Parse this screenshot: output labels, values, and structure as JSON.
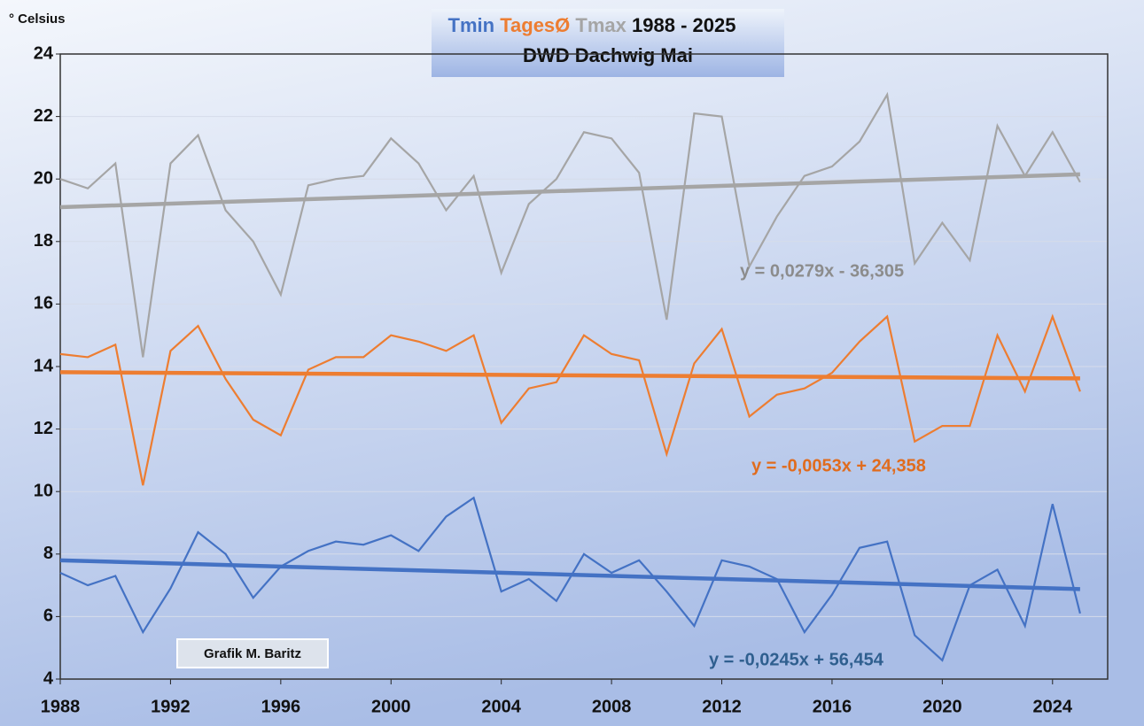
{
  "chart_data": {
    "type": "line",
    "title": "1988 - 2025",
    "subtitle": "DWD Dachwig Mai",
    "ylabel": "° Celsius",
    "credit": "Grafik M. Baritz",
    "x": [
      1988,
      1989,
      1990,
      1991,
      1992,
      1993,
      1994,
      1995,
      1996,
      1997,
      1998,
      1999,
      2000,
      2001,
      2002,
      2003,
      2004,
      2005,
      2006,
      2007,
      2008,
      2009,
      2010,
      2011,
      2012,
      2013,
      2014,
      2015,
      2016,
      2017,
      2018,
      2019,
      2020,
      2021,
      2022,
      2023,
      2024,
      2025
    ],
    "series": [
      {
        "name": "Tmin",
        "color": "#4472c4",
        "values": [
          7.4,
          7.0,
          7.3,
          5.5,
          6.9,
          8.7,
          8.0,
          6.6,
          7.6,
          8.1,
          8.4,
          8.3,
          8.6,
          8.1,
          9.2,
          9.8,
          6.8,
          7.2,
          6.5,
          8.0,
          7.4,
          7.8,
          6.8,
          5.7,
          7.8,
          7.6,
          7.2,
          5.5,
          6.7,
          8.2,
          8.4,
          5.4,
          4.6,
          7.0,
          7.5,
          5.7,
          9.6,
          6.1
        ]
      },
      {
        "name": "TagesØ",
        "color": "#ed7d31",
        "values": [
          14.4,
          14.3,
          14.7,
          10.2,
          14.5,
          15.3,
          13.6,
          12.3,
          11.8,
          13.9,
          14.3,
          14.3,
          15.0,
          14.8,
          14.5,
          15.0,
          12.2,
          13.3,
          13.5,
          15.0,
          14.4,
          14.2,
          11.2,
          14.1,
          15.2,
          12.4,
          13.1,
          13.3,
          13.8,
          14.8,
          15.6,
          11.6,
          12.1,
          12.1,
          15.0,
          13.2,
          15.6,
          13.2
        ]
      },
      {
        "name": "Tmax",
        "color": "#a5a5a5",
        "values": [
          20.0,
          19.7,
          20.5,
          14.3,
          20.5,
          21.4,
          19.0,
          18.0,
          16.3,
          19.8,
          20.0,
          20.1,
          21.3,
          20.5,
          19.0,
          20.1,
          17.0,
          19.2,
          20.0,
          21.5,
          21.3,
          20.2,
          15.5,
          22.1,
          22.0,
          17.2,
          18.8,
          20.1,
          20.4,
          21.2,
          22.7,
          17.3,
          18.6,
          17.4,
          21.7,
          20.1,
          21.5,
          19.9
        ]
      }
    ],
    "trendlines": [
      {
        "color": "#4472c4",
        "x": [
          1988,
          2025
        ],
        "values": [
          7.8,
          6.88
        ],
        "label": "y = -0,0245x + 56,454",
        "label_color": "#2f5f8f"
      },
      {
        "color": "#ed7d31",
        "x": [
          1988,
          2025
        ],
        "values": [
          13.82,
          13.62
        ],
        "label": "y = -0,0053x + 24,358",
        "label_color": "#e06c1e"
      },
      {
        "color": "#a5a5a5",
        "x": [
          1988,
          2025
        ],
        "values": [
          19.1,
          20.15
        ],
        "label": "y = 0,0279x - 36,305",
        "label_color": "#8c8c8c"
      }
    ],
    "xlim": [
      1988,
      2026
    ],
    "xticks": [
      1988,
      1992,
      1996,
      2000,
      2004,
      2008,
      2012,
      2016,
      2020,
      2024
    ],
    "ylim": [
      4,
      24
    ],
    "yticks": [
      4,
      6,
      8,
      10,
      12,
      14,
      16,
      18,
      20,
      22,
      24
    ],
    "grid": true
  }
}
